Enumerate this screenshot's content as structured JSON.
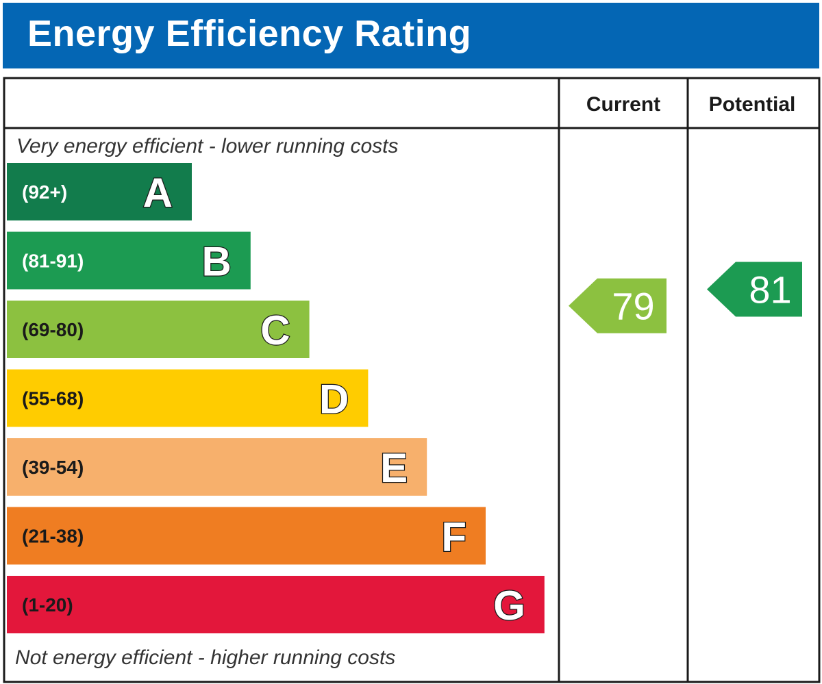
{
  "header": {
    "title": "Energy Efficiency Rating"
  },
  "columns": {
    "current": "Current",
    "potential": "Potential"
  },
  "notes": {
    "top": "Very energy efficient - lower running costs",
    "bottom": "Not energy efficient - higher running costs"
  },
  "colors": {
    "header_bg": "#0466b4",
    "text_dark": "#1a1a1a",
    "border": "#1a1a1a"
  },
  "chart_data": {
    "type": "bar",
    "title": "Energy Efficiency Rating",
    "categories": [
      "A",
      "B",
      "C",
      "D",
      "E",
      "F",
      "G"
    ],
    "bands": [
      {
        "letter": "A",
        "range": "(92+)",
        "min": 92,
        "max": 100,
        "color": "#127c4c",
        "range_color": "#ffffff"
      },
      {
        "letter": "B",
        "range": "(81-91)",
        "min": 81,
        "max": 91,
        "color": "#1c9b52",
        "range_color": "#ffffff"
      },
      {
        "letter": "C",
        "range": "(69-80)",
        "min": 69,
        "max": 80,
        "color": "#8cc140",
        "range_color": "#1a1a1a"
      },
      {
        "letter": "D",
        "range": "(55-68)",
        "min": 55,
        "max": 68,
        "color": "#ffcc00",
        "range_color": "#1a1a1a"
      },
      {
        "letter": "E",
        "range": "(39-54)",
        "min": 39,
        "max": 54,
        "color": "#f7b06c",
        "range_color": "#1a1a1a"
      },
      {
        "letter": "F",
        "range": "(21-38)",
        "min": 21,
        "max": 38,
        "color": "#ef7d22",
        "range_color": "#1a1a1a"
      },
      {
        "letter": "G",
        "range": "(1-20)",
        "min": 1,
        "max": 20,
        "color": "#e3173b",
        "range_color": "#1a1a1a"
      }
    ],
    "series": [
      {
        "name": "Current",
        "value": 79,
        "band": "C",
        "color": "#8cc140"
      },
      {
        "name": "Potential",
        "value": 81,
        "band": "B",
        "color": "#1c9b52"
      }
    ]
  }
}
